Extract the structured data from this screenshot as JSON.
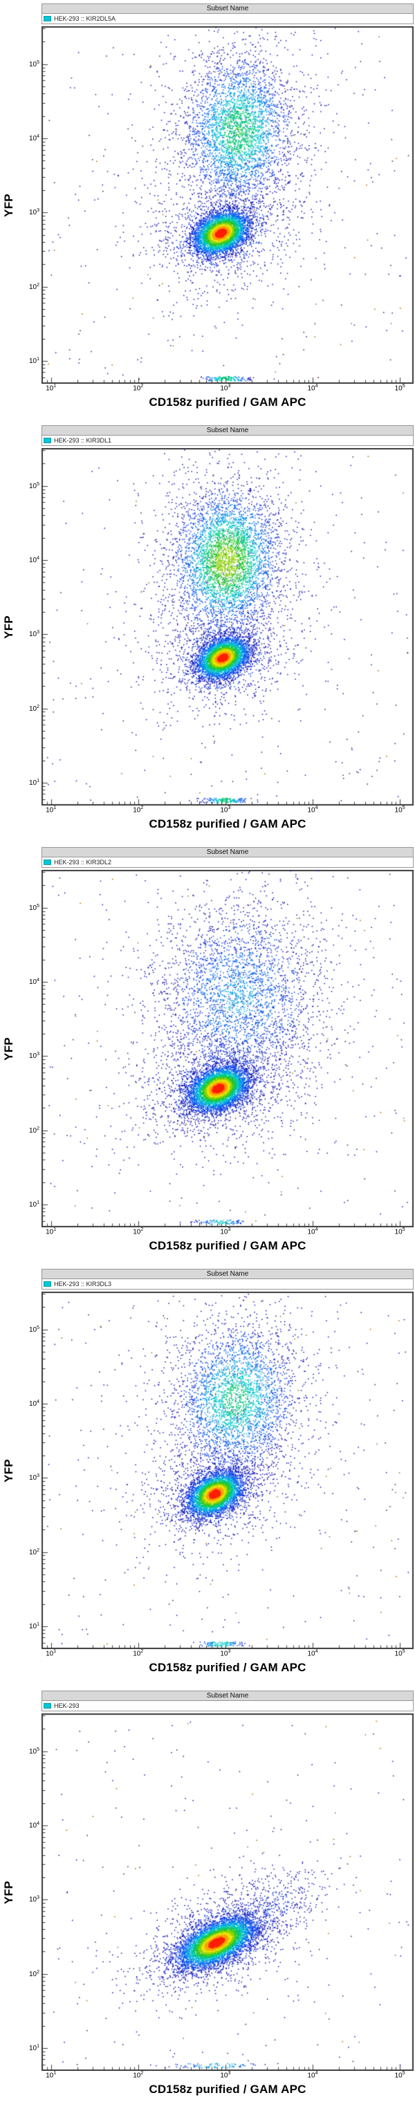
{
  "style": {
    "accent_cyan": "#00c8d8",
    "header_bg": "#d8d8d8",
    "header_border": "#979797",
    "frame_color": "#3c3c3c",
    "tick_color": "#3c3c3c",
    "density_ramp": [
      "#1414b4",
      "#0a3ce6",
      "#0064f0",
      "#009ce6",
      "#00c8c8",
      "#00c878",
      "#28c828",
      "#8cd200",
      "#e6e600",
      "#ffa000",
      "#ff1e00"
    ],
    "outlier_colors": {
      "orange": "#a85f00",
      "dark": "#20205a",
      "blue": "#1414a0"
    }
  },
  "panels": [
    {
      "header": "Subset Name",
      "legend": "HEK-293 :: KIR2DL5A",
      "ylabel": "YFP",
      "xlabel": "CD158z purified / GAM APC"
    },
    {
      "header": "Subset Name",
      "legend": "HEK-293 :: KIR3DL1",
      "ylabel": "YFP",
      "xlabel": "CD158z purified / GAM APC"
    },
    {
      "header": "Subset Name",
      "legend": "HEK-293 :: KIR3DL2",
      "ylabel": "YFP",
      "xlabel": "CD158z purified / GAM APC"
    },
    {
      "header": "Subset Name",
      "legend": "HEK-293 :: KIR3DL3",
      "ylabel": "YFP",
      "xlabel": "CD158z purified / GAM APC"
    },
    {
      "header": "Subset Name",
      "legend": "HEK-293",
      "ylabel": "YFP",
      "xlabel": "CD158z purified / GAM APC"
    }
  ],
  "chart_data": [
    {
      "type": "scatter",
      "title": "HEK-293 :: KIR2DL5A",
      "xlabel": "CD158z purified / GAM APC",
      "ylabel": "YFP",
      "xscale": "log",
      "yscale": "log",
      "xlog_range": [
        0.9,
        5.15
      ],
      "ylog_range": [
        0.7,
        5.5
      ],
      "ticks_log10": [
        1,
        2,
        3,
        4,
        5
      ],
      "grid": false,
      "legend_position": "top",
      "seed": 11,
      "populations": [
        {
          "name": "debris scatter",
          "type": "uniform",
          "count": 260
        },
        {
          "name": "YFP-low tail",
          "type": "gauss",
          "log_center": [
            2.95,
            2.72
          ],
          "log_sigma": [
            0.45,
            0.42
          ],
          "rho": 0.2,
          "count": 900,
          "peak": 0.18
        },
        {
          "name": "YFP-high tail",
          "type": "gauss",
          "log_center": [
            3.15,
            4.0
          ],
          "log_sigma": [
            0.62,
            0.85
          ],
          "rho": 0.1,
          "count": 650,
          "peak": 0.1
        },
        {
          "name": "YFP-high KIR2DL5A+",
          "type": "gauss",
          "log_center": [
            3.15,
            4.1
          ],
          "log_sigma": [
            0.3,
            0.5
          ],
          "rho": 0.05,
          "count": 3200,
          "peak": 0.55
        },
        {
          "name": "axis pileup",
          "type": "bottom",
          "log_center_x": 3.0,
          "log_sigma_x": 0.14,
          "count": 140,
          "peak": 0.5
        },
        {
          "name": "YFP-low main",
          "type": "gauss",
          "log_center": [
            2.95,
            2.72
          ],
          "log_sigma": [
            0.16,
            0.15
          ],
          "rho": 0.3,
          "count": 4600,
          "peak": 1.0
        }
      ]
    },
    {
      "type": "scatter",
      "title": "HEK-293 :: KIR3DL1",
      "xlabel": "CD158z purified / GAM APC",
      "ylabel": "YFP",
      "xscale": "log",
      "yscale": "log",
      "xlog_range": [
        0.9,
        5.15
      ],
      "ylog_range": [
        0.7,
        5.5
      ],
      "ticks_log10": [
        1,
        2,
        3,
        4,
        5
      ],
      "grid": false,
      "legend_position": "top",
      "seed": 22,
      "populations": [
        {
          "name": "debris scatter",
          "type": "uniform",
          "count": 260
        },
        {
          "name": "YFP-low tail",
          "type": "gauss",
          "log_center": [
            2.97,
            2.68
          ],
          "log_sigma": [
            0.42,
            0.4
          ],
          "rho": 0.2,
          "count": 850,
          "peak": 0.18
        },
        {
          "name": "YFP-high tail",
          "type": "gauss",
          "log_center": [
            3.02,
            3.95
          ],
          "log_sigma": [
            0.55,
            0.8
          ],
          "rho": 0.1,
          "count": 700,
          "peak": 0.1
        },
        {
          "name": "YFP-high KIR3DL1+",
          "type": "gauss",
          "log_center": [
            3.02,
            3.98
          ],
          "log_sigma": [
            0.3,
            0.48
          ],
          "rho": 0.05,
          "count": 3800,
          "peak": 0.7
        },
        {
          "name": "axis pileup",
          "type": "bottom",
          "log_center_x": 3.0,
          "log_sigma_x": 0.13,
          "count": 150,
          "peak": 0.5
        },
        {
          "name": "YFP-low main",
          "type": "gauss",
          "log_center": [
            2.97,
            2.68
          ],
          "log_sigma": [
            0.15,
            0.14
          ],
          "rho": 0.3,
          "count": 4300,
          "peak": 1.0
        }
      ]
    },
    {
      "type": "scatter",
      "title": "HEK-293 :: KIR3DL2",
      "xlabel": "CD158z purified / GAM APC",
      "ylabel": "YFP",
      "xscale": "log",
      "yscale": "log",
      "xlog_range": [
        0.9,
        5.15
      ],
      "ylog_range": [
        0.7,
        5.5
      ],
      "ticks_log10": [
        1,
        2,
        3,
        4,
        5
      ],
      "grid": false,
      "legend_position": "top",
      "seed": 33,
      "populations": [
        {
          "name": "debris scatter",
          "type": "uniform",
          "count": 300
        },
        {
          "name": "YFP-low tail",
          "type": "gauss",
          "log_center": [
            2.92,
            2.58
          ],
          "log_sigma": [
            0.5,
            0.42
          ],
          "rho": 0.25,
          "count": 1200,
          "peak": 0.16
        },
        {
          "name": "YFP-high tail",
          "type": "gauss",
          "log_center": [
            3.15,
            3.75
          ],
          "log_sigma": [
            0.6,
            0.85
          ],
          "rho": 0.1,
          "count": 800,
          "peak": 0.08
        },
        {
          "name": "YFP-high KIR3DL2+ diffuse",
          "type": "gauss",
          "log_center": [
            3.15,
            3.8
          ],
          "log_sigma": [
            0.45,
            0.62
          ],
          "rho": 0.05,
          "count": 2400,
          "peak": 0.3
        },
        {
          "name": "axis pileup",
          "type": "bottom",
          "log_center_x": 2.95,
          "log_sigma_x": 0.15,
          "count": 90,
          "peak": 0.4
        },
        {
          "name": "YFP-low main",
          "type": "gauss",
          "log_center": [
            2.92,
            2.56
          ],
          "log_sigma": [
            0.17,
            0.15
          ],
          "rho": 0.3,
          "count": 5200,
          "peak": 1.0
        }
      ]
    },
    {
      "type": "scatter",
      "title": "HEK-293 :: KIR3DL3",
      "xlabel": "CD158z purified / GAM APC",
      "ylabel": "YFP",
      "xscale": "log",
      "yscale": "log",
      "xlog_range": [
        0.9,
        5.15
      ],
      "ylog_range": [
        0.7,
        5.5
      ],
      "ticks_log10": [
        1,
        2,
        3,
        4,
        5
      ],
      "grid": false,
      "legend_position": "top",
      "seed": 44,
      "populations": [
        {
          "name": "debris scatter",
          "type": "uniform",
          "count": 300
        },
        {
          "name": "YFP-low tail",
          "type": "gauss",
          "log_center": [
            2.88,
            2.78
          ],
          "log_sigma": [
            0.42,
            0.4
          ],
          "rho": 0.25,
          "count": 900,
          "peak": 0.16
        },
        {
          "name": "YFP-high tail",
          "type": "gauss",
          "log_center": [
            3.1,
            4.0
          ],
          "log_sigma": [
            0.6,
            0.8
          ],
          "rho": 0.1,
          "count": 650,
          "peak": 0.09
        },
        {
          "name": "YFP-high KIR3DL3+",
          "type": "gauss",
          "log_center": [
            3.12,
            4.05
          ],
          "log_sigma": [
            0.34,
            0.5
          ],
          "rho": 0.05,
          "count": 2800,
          "peak": 0.5
        },
        {
          "name": "axis pileup",
          "type": "bottom",
          "log_center_x": 2.95,
          "log_sigma_x": 0.14,
          "count": 110,
          "peak": 0.45
        },
        {
          "name": "YFP-low main",
          "type": "gauss",
          "log_center": [
            2.88,
            2.78
          ],
          "log_sigma": [
            0.16,
            0.15
          ],
          "rho": 0.35,
          "count": 4300,
          "peak": 1.0
        }
      ]
    },
    {
      "type": "scatter",
      "title": "HEK-293",
      "xlabel": "CD158z purified / GAM APC",
      "ylabel": "YFP",
      "xscale": "log",
      "yscale": "log",
      "xlog_range": [
        0.9,
        5.15
      ],
      "ylog_range": [
        0.7,
        5.5
      ],
      "ticks_log10": [
        1,
        2,
        3,
        4,
        5
      ],
      "grid": false,
      "legend_position": "top",
      "seed": 55,
      "populations": [
        {
          "name": "debris scatter",
          "type": "uniform",
          "count": 220
        },
        {
          "name": "main tail",
          "type": "gauss",
          "log_center": [
            2.92,
            2.45
          ],
          "log_sigma": [
            0.5,
            0.38
          ],
          "rho": 0.5,
          "count": 1300,
          "peak": 0.2
        },
        {
          "name": "diagonal high tail",
          "type": "gauss",
          "log_center": [
            3.5,
            2.9
          ],
          "log_sigma": [
            0.35,
            0.3
          ],
          "rho": 0.6,
          "count": 320,
          "peak": 0.13
        },
        {
          "name": "axis pileup",
          "type": "bottom",
          "log_center_x": 2.9,
          "log_sigma_x": 0.3,
          "count": 80,
          "peak": 0.35
        },
        {
          "name": "untransfected main",
          "type": "gauss",
          "log_center": [
            2.9,
            2.42
          ],
          "log_sigma": [
            0.22,
            0.17
          ],
          "rho": 0.55,
          "count": 5800,
          "peak": 1.0
        }
      ]
    }
  ]
}
